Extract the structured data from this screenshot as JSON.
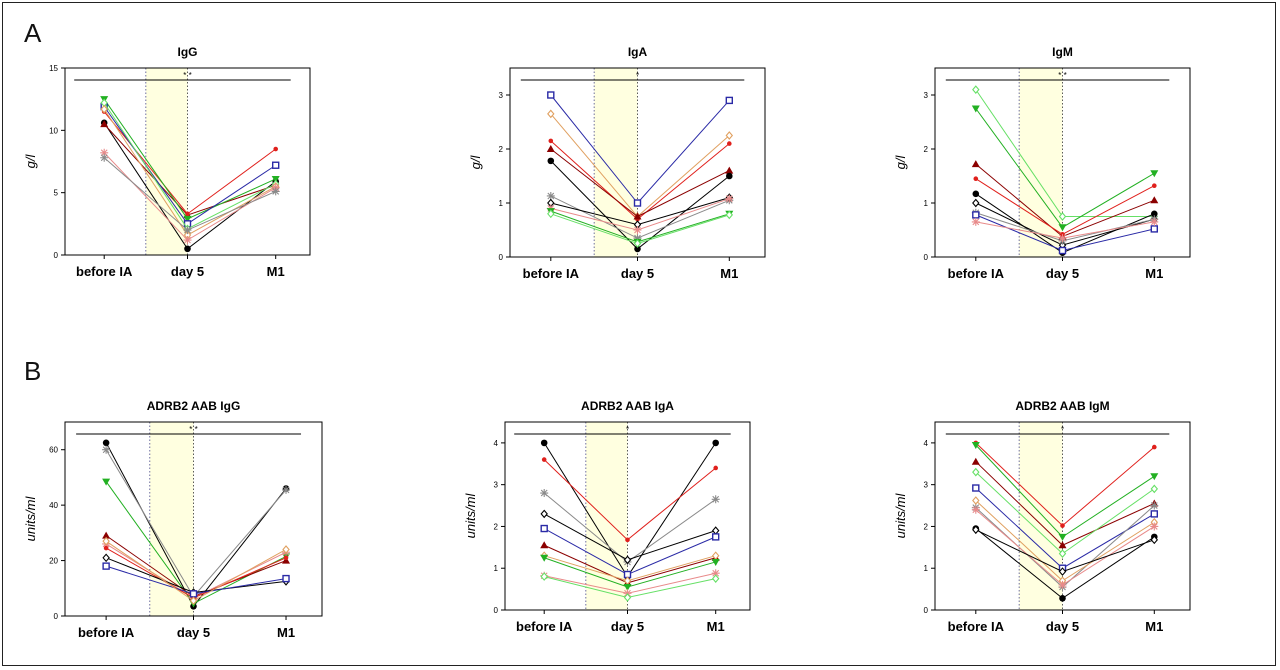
{
  "panels": {
    "a": "A",
    "b": "B"
  },
  "colors": {
    "black": "#000000",
    "darkred": "#8b0000",
    "red": "#e0201c",
    "green": "#22b022",
    "blue": "#2a2aa6",
    "lightgreen": "#66e066",
    "orange": "#e0a060",
    "pink": "#e88a8a",
    "gray": "#8a8a8a",
    "shade": "#ffffe0"
  },
  "chart_data": [
    {
      "type": "line",
      "title": "IgG",
      "ylabel": "g/l",
      "categories": [
        "before IA",
        "day 5",
        "M1"
      ],
      "ylim": [
        0,
        15
      ],
      "yticks": [
        "0",
        "5",
        "10",
        "15"
      ],
      "significance": "* *",
      "series": [
        {
          "values": [
            10.6,
            0.5,
            5.9
          ],
          "color": "black",
          "marker": "circle"
        },
        {
          "values": [
            10.5,
            3.2,
            5.6
          ],
          "color": "darkred",
          "marker": "triangle"
        },
        {
          "values": [
            11.5,
            3.3,
            8.5
          ],
          "color": "red",
          "marker": "dot"
        },
        {
          "values": [
            12.5,
            2.9,
            6.1
          ],
          "color": "green",
          "marker": "triangle-down"
        },
        {
          "values": [
            11.9,
            2.5,
            7.2
          ],
          "color": "blue",
          "marker": "square"
        },
        {
          "values": [
            12.2,
            2.1,
            5.7
          ],
          "color": "lightgreen",
          "marker": "diamond"
        },
        {
          "values": [
            11.7,
            1.6,
            5.5
          ],
          "color": "orange",
          "marker": "diamond"
        },
        {
          "values": [
            8.2,
            1.2,
            5.4
          ],
          "color": "pink",
          "marker": "star"
        },
        {
          "values": [
            7.8,
            2.0,
            5.1
          ],
          "color": "gray",
          "marker": "star"
        }
      ]
    },
    {
      "type": "line",
      "title": "IgA",
      "ylabel": "g/l",
      "categories": [
        "before IA",
        "day 5",
        "M1"
      ],
      "ylim": [
        0,
        3.5
      ],
      "yticks": [
        "0",
        "1",
        "2",
        "3"
      ],
      "significance": "*",
      "series": [
        {
          "values": [
            3.0,
            1.0,
            2.9
          ],
          "color": "blue",
          "marker": "square"
        },
        {
          "values": [
            2.65,
            0.75,
            2.25
          ],
          "color": "orange",
          "marker": "diamond"
        },
        {
          "values": [
            2.15,
            0.7,
            2.1
          ],
          "color": "red",
          "marker": "dot"
        },
        {
          "values": [
            2.0,
            0.75,
            1.6
          ],
          "color": "darkred",
          "marker": "triangle"
        },
        {
          "values": [
            1.78,
            0.15,
            1.5
          ],
          "color": "black",
          "marker": "circle"
        },
        {
          "values": [
            1.13,
            0.35,
            1.05
          ],
          "color": "gray",
          "marker": "star"
        },
        {
          "values": [
            1.0,
            0.6,
            1.1
          ],
          "color": "black",
          "marker": "diamond"
        },
        {
          "values": [
            0.9,
            0.5,
            1.08
          ],
          "color": "pink",
          "marker": "star"
        },
        {
          "values": [
            0.85,
            0.28,
            0.8
          ],
          "color": "green",
          "marker": "triangle-down"
        },
        {
          "values": [
            0.8,
            0.25,
            0.78
          ],
          "color": "lightgreen",
          "marker": "diamond"
        }
      ]
    },
    {
      "type": "line",
      "title": "IgM",
      "ylabel": "g/l",
      "categories": [
        "before IA",
        "day 5",
        "M1"
      ],
      "ylim": [
        0,
        3.5
      ],
      "yticks": [
        "0",
        "1",
        "2",
        "3"
      ],
      "significance": "* *",
      "series": [
        {
          "values": [
            3.1,
            0.75,
            0.75
          ],
          "color": "lightgreen",
          "marker": "diamond"
        },
        {
          "values": [
            2.75,
            0.55,
            1.55
          ],
          "color": "green",
          "marker": "triangle-down"
        },
        {
          "values": [
            1.72,
            0.38,
            1.05
          ],
          "color": "darkred",
          "marker": "triangle"
        },
        {
          "values": [
            1.45,
            0.42,
            1.32
          ],
          "color": "red",
          "marker": "dot"
        },
        {
          "values": [
            1.17,
            0.08,
            0.8
          ],
          "color": "black",
          "marker": "circle"
        },
        {
          "values": [
            1.0,
            0.22,
            0.7
          ],
          "color": "black",
          "marker": "diamond"
        },
        {
          "values": [
            0.82,
            0.3,
            0.7
          ],
          "color": "gray",
          "marker": "star"
        },
        {
          "values": [
            0.78,
            0.12,
            0.52
          ],
          "color": "blue",
          "marker": "square"
        },
        {
          "values": [
            0.65,
            0.35,
            0.65
          ],
          "color": "pink",
          "marker": "star"
        }
      ]
    },
    {
      "type": "line",
      "title": "ADRB2 AAB  IgG",
      "ylabel": "units/ml",
      "categories": [
        "before IA",
        "day 5",
        "M1"
      ],
      "ylim": [
        0,
        70
      ],
      "yticks": [
        "0",
        "20",
        "40",
        "60"
      ],
      "significance": "* *",
      "series": [
        {
          "values": [
            62.5,
            3.5,
            46.0
          ],
          "color": "black",
          "marker": "circle"
        },
        {
          "values": [
            60.0,
            7.0,
            45.5
          ],
          "color": "gray",
          "marker": "star"
        },
        {
          "values": [
            48.5,
            4.5,
            21.5
          ],
          "color": "green",
          "marker": "triangle-down"
        },
        {
          "values": [
            29.0,
            7.0,
            20.0
          ],
          "color": "darkred",
          "marker": "triangle"
        },
        {
          "values": [
            26.0,
            6.5,
            23.0
          ],
          "color": "pink",
          "marker": "star"
        },
        {
          "values": [
            24.5,
            6.5,
            21.0
          ],
          "color": "red",
          "marker": "dot"
        },
        {
          "values": [
            21.0,
            8.5,
            12.5
          ],
          "color": "black",
          "marker": "diamond"
        },
        {
          "values": [
            18.0,
            8.0,
            13.5
          ],
          "color": "blue",
          "marker": "square"
        },
        {
          "values": [
            27.0,
            5.5,
            24.0
          ],
          "color": "orange",
          "marker": "diamond"
        }
      ]
    },
    {
      "type": "line",
      "title": "ADRB2 AAB  IgA",
      "ylabel": "units/ml",
      "categories": [
        "before IA",
        "day 5",
        "M1"
      ],
      "ylim": [
        0,
        4.5
      ],
      "yticks": [
        "0",
        "1",
        "2",
        "3",
        "4"
      ],
      "significance": "*",
      "series": [
        {
          "values": [
            4.0,
            0.8,
            4.0
          ],
          "color": "black",
          "marker": "circle"
        },
        {
          "values": [
            3.6,
            1.68,
            3.4
          ],
          "color": "red",
          "marker": "dot"
        },
        {
          "values": [
            2.8,
            1.15,
            2.65
          ],
          "color": "gray",
          "marker": "star"
        },
        {
          "values": [
            2.3,
            1.2,
            1.9
          ],
          "color": "black",
          "marker": "diamond"
        },
        {
          "values": [
            1.95,
            0.85,
            1.75
          ],
          "color": "blue",
          "marker": "square"
        },
        {
          "values": [
            1.55,
            0.65,
            1.25
          ],
          "color": "darkred",
          "marker": "triangle"
        },
        {
          "values": [
            1.3,
            0.7,
            1.3
          ],
          "color": "orange",
          "marker": "diamond"
        },
        {
          "values": [
            1.25,
            0.55,
            1.15
          ],
          "color": "green",
          "marker": "triangle-down"
        },
        {
          "values": [
            0.82,
            0.4,
            0.88
          ],
          "color": "pink",
          "marker": "star"
        },
        {
          "values": [
            0.8,
            0.3,
            0.75
          ],
          "color": "lightgreen",
          "marker": "diamond"
        }
      ]
    },
    {
      "type": "line",
      "title": "ADRB2 AAB  IgM",
      "ylabel": "units/ml",
      "categories": [
        "before IA",
        "day 5",
        "M1"
      ],
      "ylim": [
        0,
        4.5
      ],
      "yticks": [
        "0",
        "1",
        "2",
        "3",
        "4"
      ],
      "significance": "*",
      "series": [
        {
          "values": [
            4.0,
            2.02,
            3.9
          ],
          "color": "red",
          "marker": "dot"
        },
        {
          "values": [
            3.95,
            1.75,
            3.2
          ],
          "color": "green",
          "marker": "triangle-down"
        },
        {
          "values": [
            3.55,
            1.55,
            2.55
          ],
          "color": "darkred",
          "marker": "triangle"
        },
        {
          "values": [
            3.3,
            1.35,
            2.9
          ],
          "color": "lightgreen",
          "marker": "diamond"
        },
        {
          "values": [
            2.92,
            1.0,
            2.3
          ],
          "color": "blue",
          "marker": "square"
        },
        {
          "values": [
            2.45,
            0.55,
            2.5
          ],
          "color": "gray",
          "marker": "star"
        },
        {
          "values": [
            2.62,
            0.7,
            2.1
          ],
          "color": "orange",
          "marker": "diamond"
        },
        {
          "values": [
            2.4,
            0.6,
            2.0
          ],
          "color": "pink",
          "marker": "star"
        },
        {
          "values": [
            1.95,
            0.28,
            1.75
          ],
          "color": "black",
          "marker": "circle"
        },
        {
          "values": [
            1.92,
            0.92,
            1.68
          ],
          "color": "black",
          "marker": "diamond"
        }
      ]
    }
  ]
}
